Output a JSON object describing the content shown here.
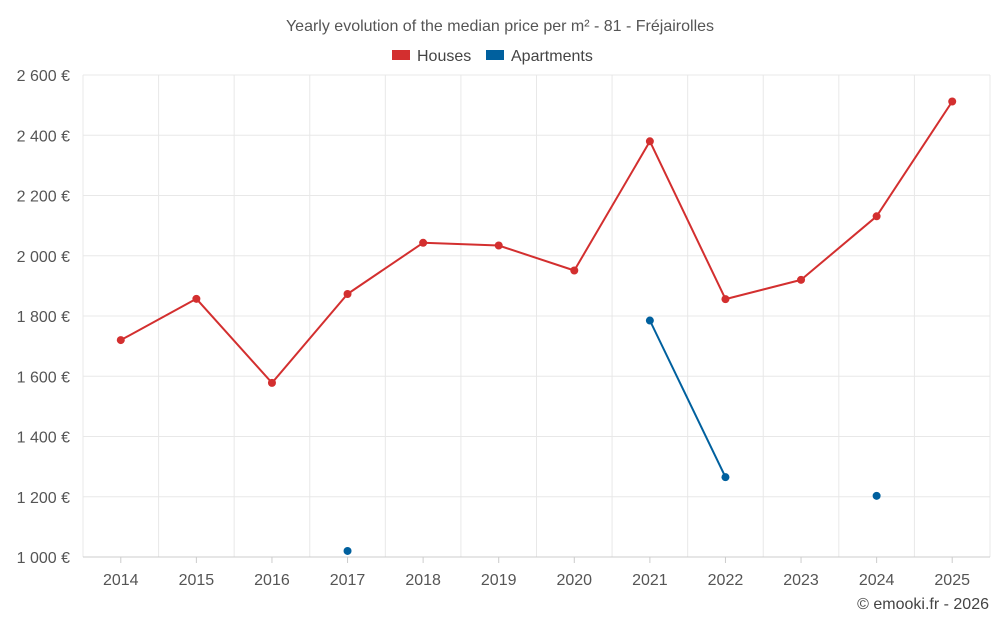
{
  "chart_data": {
    "type": "line",
    "title": "Yearly evolution of the median price per m² - 81 - Fréjairolles",
    "categories": [
      "2014",
      "2015",
      "2016",
      "2017",
      "2018",
      "2019",
      "2020",
      "2021",
      "2022",
      "2023",
      "2024",
      "2025"
    ],
    "series": [
      {
        "name": "Houses",
        "color": "#d32f2f",
        "values": [
          1720,
          1857,
          1578,
          1873,
          2043,
          2034,
          1951,
          2380,
          1856,
          1920,
          2131,
          2512
        ]
      },
      {
        "name": "Apartments",
        "color": "#00609e",
        "values": [
          null,
          null,
          null,
          1020,
          null,
          null,
          null,
          1785,
          1265,
          null,
          1203,
          null
        ]
      }
    ],
    "ylim": [
      1000,
      2600
    ],
    "yticks": [
      1000,
      1200,
      1400,
      1600,
      1800,
      2000,
      2200,
      2400,
      2600
    ],
    "ytick_labels": [
      "1 000 €",
      "1 200 €",
      "1 400 €",
      "1 600 €",
      "1 800 €",
      "2 000 €",
      "2 200 €",
      "2 400 €",
      "2 600 €"
    ],
    "xlabel": "",
    "ylabel": "",
    "legend_position": "top-center",
    "grid": true
  },
  "credit": "© emooki.fr - 2026"
}
